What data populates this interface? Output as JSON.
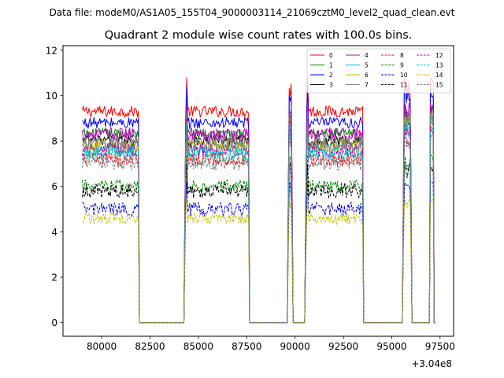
{
  "chart_data": {
    "type": "line",
    "suptitle": "Data file: modeM0/AS1A05_155T04_9000003114_21069cztM0_level2_quad_clean.evt",
    "title": "Quadrant 2 module wise count rates with 100.0s bins.",
    "xlabel": "",
    "ylabel": "",
    "x_offset_label": "+3.04e8",
    "xlim": [
      78000,
      98200
    ],
    "ylim": [
      -0.6,
      12.2
    ],
    "xticks": [
      80000,
      82500,
      85000,
      87500,
      90000,
      92500,
      95000,
      97500
    ],
    "xtick_labels": [
      "80000",
      "82500",
      "85000",
      "87500",
      "90000",
      "92500",
      "95000",
      "97500"
    ],
    "yticks": [
      0,
      2,
      4,
      6,
      8,
      10,
      12
    ],
    "ytick_labels": [
      "0",
      "2",
      "4",
      "6",
      "8",
      "10",
      "12"
    ],
    "grid": false,
    "legend_position": "top-right",
    "legend_columns": 4,
    "x_segments": [
      {
        "start": 79000,
        "end": 81900,
        "step": 100
      },
      {
        "start": 84300,
        "end": 87600,
        "step": 100
      },
      {
        "start": 89650,
        "end": 89850,
        "step": 100
      },
      {
        "start": 90550,
        "end": 93500,
        "step": 100
      },
      {
        "start": 95600,
        "end": 96000,
        "step": 100
      },
      {
        "start": 97000,
        "end": 97150,
        "step": 150
      }
    ],
    "gap_value": 0,
    "series": [
      {
        "name": "0",
        "color": "#ff0000",
        "dash": "solid",
        "level": 9.3,
        "noise": 0.25,
        "spike": 10.8
      },
      {
        "name": "1",
        "color": "#008000",
        "dash": "solid",
        "level": 8.3,
        "noise": 0.25,
        "spike": 9.6
      },
      {
        "name": "2",
        "color": "#0000ff",
        "dash": "solid",
        "level": 8.8,
        "noise": 0.25,
        "spike": 10.4
      },
      {
        "name": "3",
        "color": "#000000",
        "dash": "solid",
        "level": 8.0,
        "noise": 0.25,
        "spike": 9.3
      },
      {
        "name": "4",
        "color": "#bf00bf",
        "dash": "solid",
        "level": 8.3,
        "noise": 0.3,
        "spike": 9.7
      },
      {
        "name": "5",
        "color": "#00bfbf",
        "dash": "solid",
        "level": 7.6,
        "noise": 0.3,
        "spike": 9.0
      },
      {
        "name": "6",
        "color": "#bfbf00",
        "dash": "solid",
        "level": 7.8,
        "noise": 0.3,
        "spike": 9.2
      },
      {
        "name": "7",
        "color": "#808080",
        "dash": "solid",
        "level": 7.9,
        "noise": 0.3,
        "spike": 9.3
      },
      {
        "name": "8",
        "color": "#ff0000",
        "dash": "dashed",
        "level": 7.2,
        "noise": 0.3,
        "spike": 8.6
      },
      {
        "name": "9",
        "color": "#008000",
        "dash": "dashed",
        "level": 6.0,
        "noise": 0.3,
        "spike": 7.4
      },
      {
        "name": "10",
        "color": "#0000ff",
        "dash": "dashed",
        "level": 5.0,
        "noise": 0.3,
        "spike": 6.2
      },
      {
        "name": "11",
        "color": "#000000",
        "dash": "dashed",
        "level": 5.8,
        "noise": 0.3,
        "spike": 7.0
      },
      {
        "name": "12",
        "color": "#bf00bf",
        "dash": "dashed",
        "level": 7.6,
        "noise": 0.3,
        "spike": 9.0
      },
      {
        "name": "13",
        "color": "#00bfbf",
        "dash": "dashed",
        "level": 7.4,
        "noise": 0.3,
        "spike": 8.8
      },
      {
        "name": "14",
        "color": "#bfbf00",
        "dash": "dashed",
        "level": 4.6,
        "noise": 0.25,
        "spike": 5.5
      },
      {
        "name": "15",
        "color": "#808080",
        "dash": "dashed",
        "level": 7.0,
        "noise": 0.3,
        "spike": 8.4
      }
    ]
  }
}
